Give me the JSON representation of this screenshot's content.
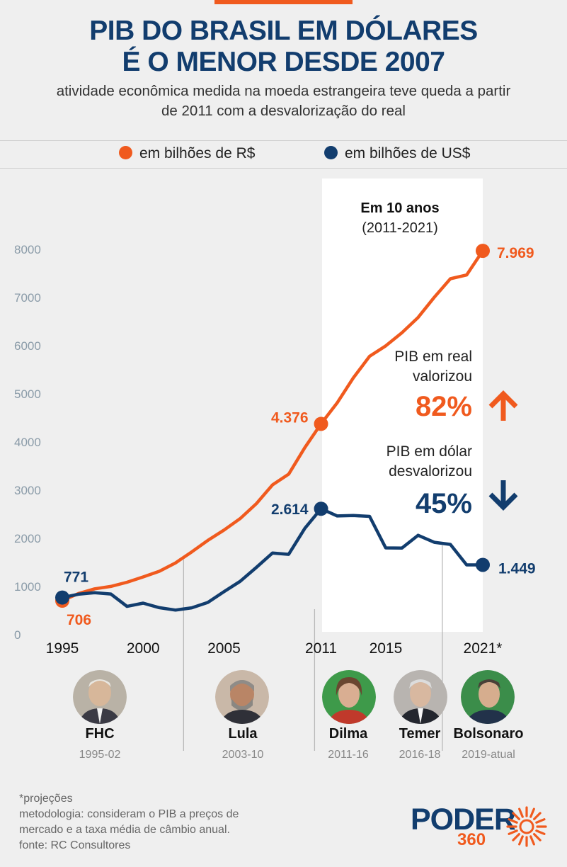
{
  "header": {
    "title_line1": "PIB DO BRASIL EM DÓLARES",
    "title_line2": "É O MENOR DESDE 2007",
    "subtitle_line1": "atividade econômica medida na moeda estrangeira teve queda a partir",
    "subtitle_line2": "de 2011 com a desvalorização do real"
  },
  "legend": {
    "brl_label": "em bilhões de R$",
    "usd_label": "em bilhões de US$"
  },
  "colors": {
    "brl": "#f05a1e",
    "usd": "#123d6e",
    "title": "#123d6e"
  },
  "chart_data": {
    "type": "line",
    "title": "PIB DO BRASIL EM DÓLARES É O MENOR DESDE 2007",
    "xlabel": "",
    "ylabel": "",
    "ylim": [
      0,
      8000
    ],
    "yticks": [
      "8000",
      "7000",
      "6000",
      "5000",
      "4000",
      "3000",
      "2000",
      "1000",
      "0"
    ],
    "ytick_values": [
      8000,
      7000,
      6000,
      5000,
      4000,
      3000,
      2000,
      1000,
      0
    ],
    "xticks": [
      "1995",
      "2000",
      "2005",
      "2011",
      "2015",
      "2021*"
    ],
    "xtick_values": [
      1995,
      2000,
      2005,
      2011,
      2015,
      2021
    ],
    "x": [
      1995,
      1996,
      1997,
      1998,
      1999,
      2000,
      2001,
      2002,
      2003,
      2004,
      2005,
      2006,
      2007,
      2008,
      2009,
      2010,
      2011,
      2012,
      2013,
      2014,
      2015,
      2016,
      2017,
      2018,
      2019,
      2020,
      2021
    ],
    "series": [
      {
        "name": "em bilhões de R$",
        "color": "#f05a1e",
        "values": [
          706,
          854,
          952,
          1002,
          1088,
          1199,
          1316,
          1489,
          1718,
          1958,
          2172,
          2410,
          2720,
          3110,
          3333,
          3886,
          4376,
          4815,
          5332,
          5779,
          5996,
          6269,
          6585,
          7004,
          7389,
          7468,
          7969
        ]
      },
      {
        "name": "em bilhões de US$",
        "color": "#123d6e",
        "values": [
          771,
          840,
          872,
          844,
          587,
          655,
          560,
          510,
          558,
          669,
          892,
          1108,
          1397,
          1696,
          1667,
          2209,
          2614,
          2465,
          2473,
          2456,
          1802,
          1797,
          2063,
          1917,
          1873,
          1448,
          1449
        ]
      }
    ],
    "point_labels": [
      {
        "series": 0,
        "x": 1995,
        "text": "706"
      },
      {
        "series": 1,
        "x": 1995,
        "text": "771"
      },
      {
        "series": 0,
        "x": 2011,
        "text": "4.376"
      },
      {
        "series": 1,
        "x": 2011,
        "text": "2.614"
      },
      {
        "series": 0,
        "x": 2021,
        "text": "7.969"
      },
      {
        "series": 1,
        "x": 2021,
        "text": "1.449"
      }
    ],
    "highlight": {
      "from": 2011,
      "to": 2021,
      "label": "Em 10 anos",
      "sublabel": "(2011-2021)"
    },
    "annotations": {
      "real_line1": "PIB em real",
      "real_line2": "valorizou",
      "real_pct": "82%",
      "usd_line1": "PIB em dólar",
      "usd_line2": "desvalorizou",
      "usd_pct": "45%"
    },
    "term_dividers": [
      2002.5,
      2010.6,
      2018.5
    ]
  },
  "presidents": [
    {
      "name": "FHC",
      "years": "1995-02"
    },
    {
      "name": "Lula",
      "years": "2003-10"
    },
    {
      "name": "Dilma",
      "years": "2011-16"
    },
    {
      "name": "Temer",
      "years": "2016-18"
    },
    {
      "name": "Bolsonaro",
      "years": "2019-atual"
    }
  ],
  "footnotes": {
    "line1": "*projeções",
    "line2": "metodologia: consideram o PIB a preços de",
    "line3": "mercado e a taxa média de câmbio anual.",
    "line4": "fonte: RC Consultores"
  },
  "logo": {
    "word": "PODER",
    "number": "360"
  }
}
